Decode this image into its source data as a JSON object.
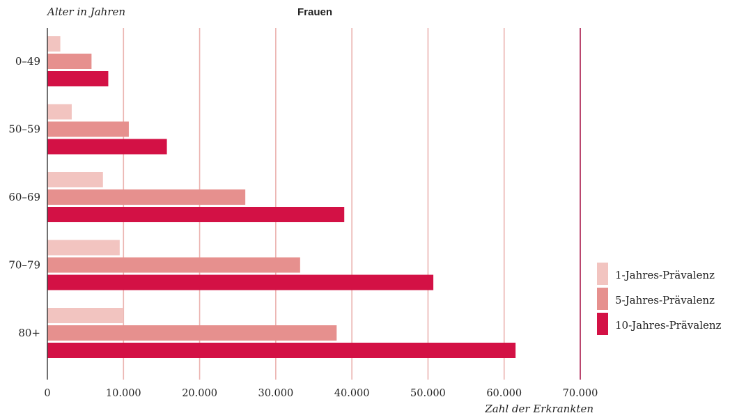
{
  "chart_data": {
    "type": "bar",
    "orientation": "horizontal",
    "title": "Frauen",
    "ylabel": "Alter in Jahren",
    "xlabel": "Zahl der Erkrankten",
    "categories": [
      "0–49",
      "50–59",
      "60–69",
      "70–79",
      "80+"
    ],
    "xlim": [
      0,
      70000
    ],
    "xticks": [
      0,
      10000,
      20000,
      30000,
      40000,
      50000,
      60000,
      70000
    ],
    "xtick_labels": [
      "0",
      "10.000",
      "20.000",
      "30.000",
      "40.000",
      "50.000",
      "60.000",
      "70.000"
    ],
    "grid": true,
    "legend_position": "right",
    "series": [
      {
        "name": "1-Jahres-Prävalenz",
        "color": "#f2c4c0",
        "values": [
          1700,
          3200,
          7300,
          9500,
          10000
        ]
      },
      {
        "name": "5-Jahres-Prävalenz",
        "color": "#e6908e",
        "values": [
          5800,
          10700,
          26000,
          33200,
          38000
        ]
      },
      {
        "name": "10-Jahres-Prävalenz",
        "color": "#d31145",
        "values": [
          8000,
          15700,
          39000,
          50700,
          61500
        ]
      }
    ],
    "gridline_color": "#ebb3b0",
    "boundary_color": "#a8174a"
  }
}
